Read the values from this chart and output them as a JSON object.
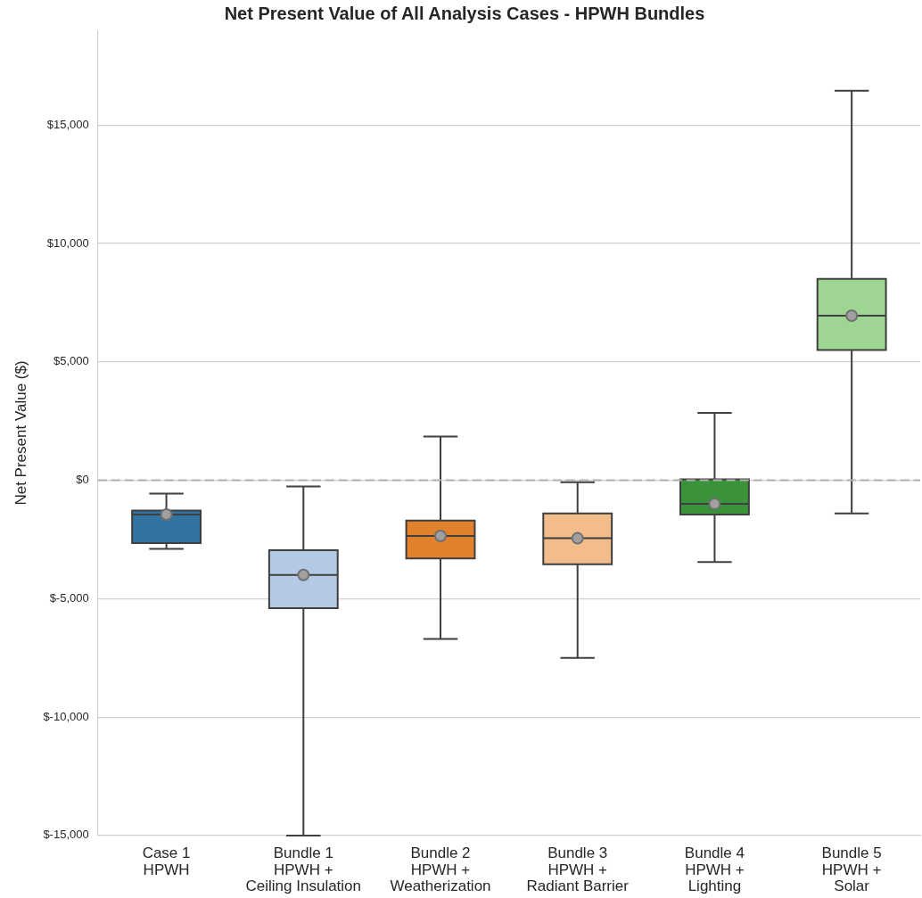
{
  "chart_data": {
    "type": "box",
    "title": "Net Present Value of All Analysis Cases - HPWH Bundles",
    "ylabel": "Net Present Value ($)",
    "categories": [
      "Case 1\nHPWH",
      "Bundle 1\nHPWH +\nCeiling Insulation",
      "Bundle 2\nHPWH +\nWeatherization",
      "Bundle 3\nHPWH +\nRadiant Barrier",
      "Bundle 4\nHPWH +\nLighting",
      "Bundle 5\nHPWH +\nSolar"
    ],
    "colors": [
      "#3274a1",
      "#b3c9e5",
      "#e1812c",
      "#f2bd8b",
      "#3a923a",
      "#9fd592"
    ],
    "boxes": [
      {
        "low": -2900,
        "q1": -2650,
        "median": -1450,
        "q3": -1280,
        "high": -560,
        "mean": -1450
      },
      {
        "low": -15000,
        "q1": -5400,
        "median": -4000,
        "q3": -2950,
        "high": -260,
        "mean": -4000
      },
      {
        "low": -6700,
        "q1": -3300,
        "median": -2350,
        "q3": -1700,
        "high": 1850,
        "mean": -2350
      },
      {
        "low": -7500,
        "q1": -3550,
        "median": -2450,
        "q3": -1400,
        "high": -80,
        "mean": -2450
      },
      {
        "low": -3450,
        "q1": -1450,
        "median": -1000,
        "q3": 40,
        "high": 2850,
        "mean": -1000
      },
      {
        "low": -1400,
        "q1": 5500,
        "median": 6950,
        "q3": 8500,
        "high": 16450,
        "mean": 6950
      }
    ],
    "ylim": [
      -15000,
      19000
    ],
    "yticks": [
      {
        "value": -15000,
        "label": "$-15,000"
      },
      {
        "value": -10000,
        "label": "$-10,000"
      },
      {
        "value": -5000,
        "label": "$-5,000"
      },
      {
        "value": 0,
        "label": "$0"
      },
      {
        "value": 5000,
        "label": "$5,000"
      },
      {
        "value": 10000,
        "label": "$10,000"
      },
      {
        "value": 15000,
        "label": "$15,000"
      }
    ],
    "grid": "y",
    "legend": false,
    "marker": "circle",
    "ref_lines": [
      {
        "axis": "y",
        "value": 0,
        "color": "#b0b0b0",
        "line_style": "dashed"
      }
    ]
  }
}
